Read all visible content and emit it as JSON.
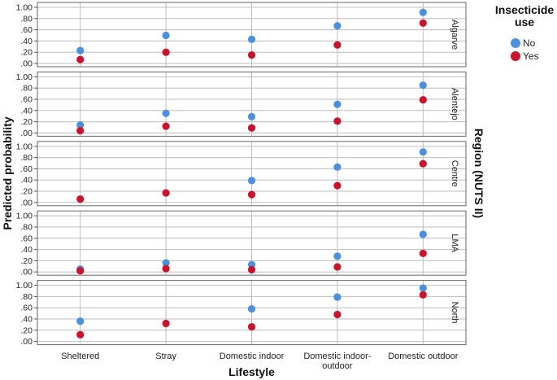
{
  "chart_data": {
    "type": "scatter",
    "xlabel": "Lifestyle",
    "ylabel": "Predicted probability",
    "facet_label": "Region (NUTS II)",
    "categories": [
      [
        "Sheltered"
      ],
      [
        "Stray"
      ],
      [
        "Domestic indoor"
      ],
      [
        "Domestic indoor-",
        "outdoor"
      ],
      [
        "Domestic outdoor"
      ]
    ],
    "yticks": [
      ".00",
      ".20",
      ".40",
      ".60",
      ".80",
      "1.00"
    ],
    "ylim": [
      0,
      1
    ],
    "legend": {
      "title": [
        "Insecticide",
        "use"
      ],
      "position": "top-right",
      "items": [
        {
          "label": "No",
          "color": "#4a90e2"
        },
        {
          "label": "Yes",
          "color": "#d0112b"
        }
      ]
    },
    "series_colors": {
      "No": "#4a90e2",
      "Yes": "#d0112b"
    },
    "facets": [
      {
        "region": "Algarve",
        "No": [
          0.23,
          0.5,
          0.43,
          0.67,
          0.91
        ],
        "Yes": [
          0.07,
          0.2,
          0.15,
          0.33,
          0.72
        ]
      },
      {
        "region": "Alentejo",
        "No": [
          0.14,
          0.35,
          0.29,
          0.51,
          0.85
        ],
        "Yes": [
          0.04,
          0.12,
          0.09,
          0.21,
          0.59
        ]
      },
      {
        "region": "Centre",
        "No": [
          null,
          null,
          0.39,
          0.63,
          0.9
        ],
        "Yes": [
          0.06,
          0.17,
          0.14,
          0.3,
          0.69
        ]
      },
      {
        "region": "LMA",
        "No": [
          0.05,
          0.16,
          0.13,
          0.28,
          0.67
        ],
        "Yes": [
          0.02,
          0.06,
          0.04,
          0.09,
          0.33
        ]
      },
      {
        "region": "North",
        "No": [
          0.36,
          null,
          0.58,
          0.79,
          0.95
        ],
        "Yes": [
          0.12,
          0.32,
          0.26,
          0.48,
          0.83
        ]
      }
    ]
  }
}
